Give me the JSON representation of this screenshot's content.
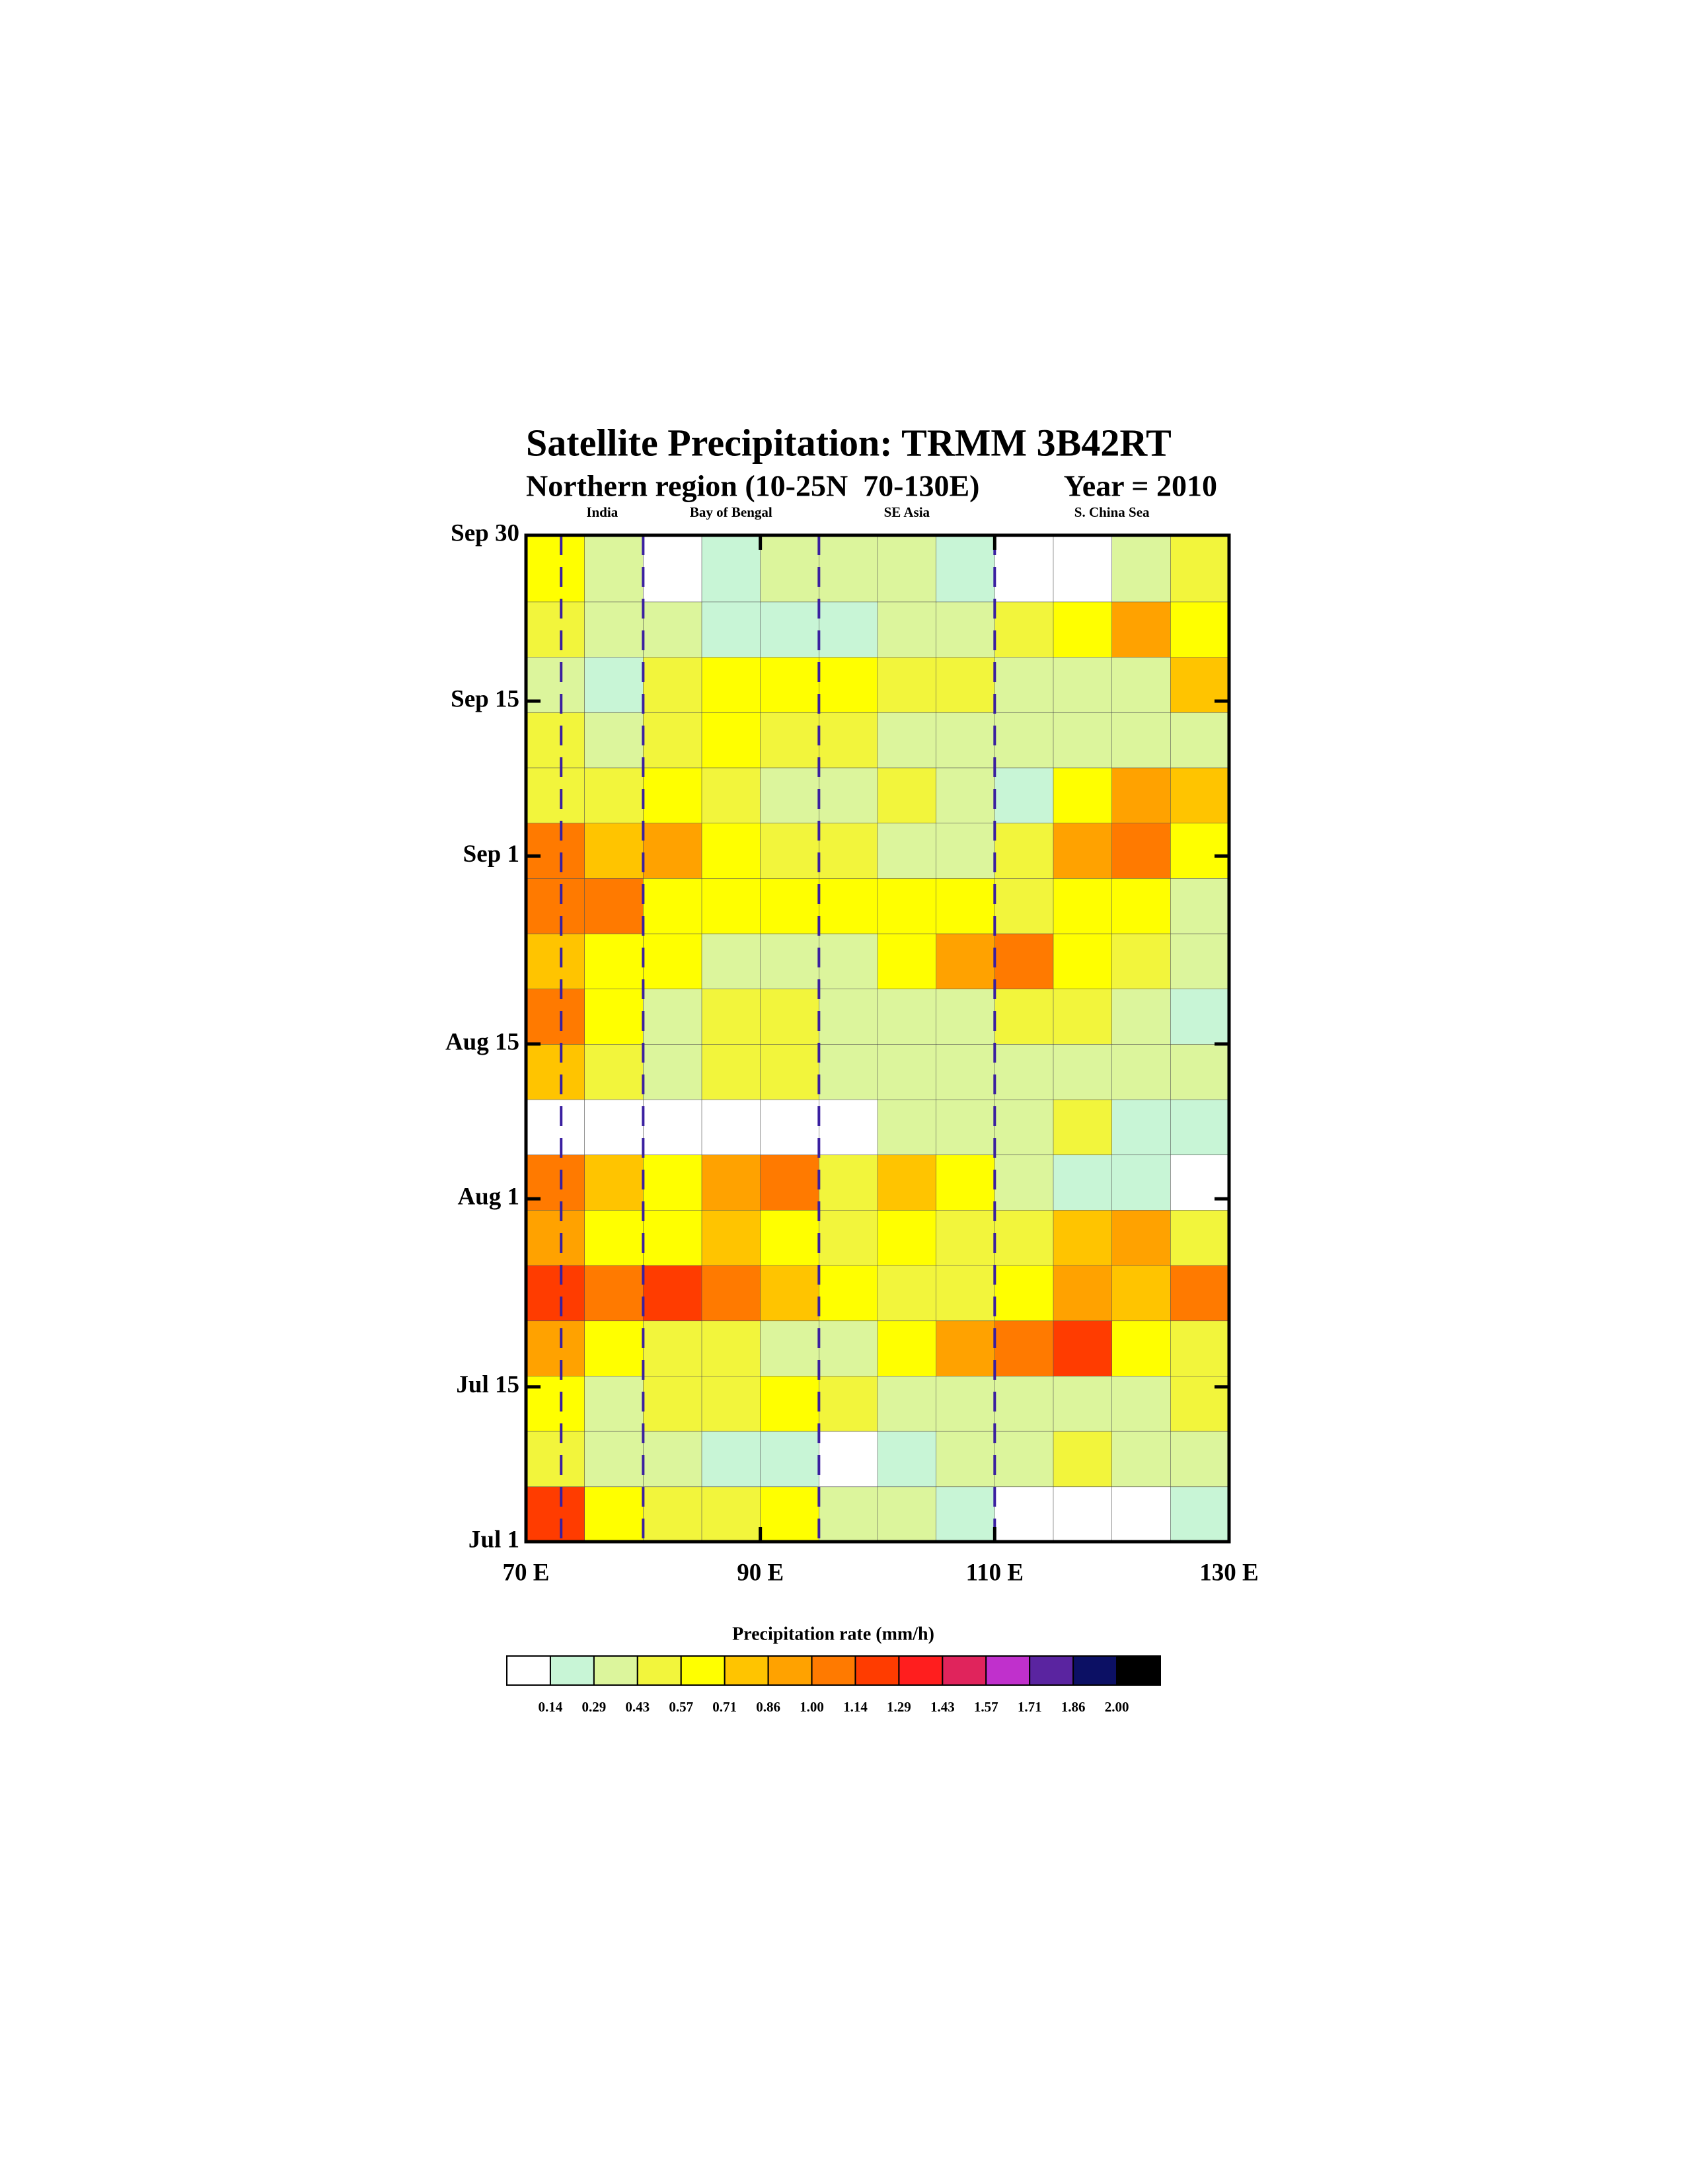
{
  "chart_data": {
    "type": "heatmap",
    "title": "Satellite Precipitation: TRMM 3B42RT",
    "subtitle": "Northern region (10-25N  70-130E)",
    "subtitle_right": "Year = 2010",
    "colorbar_label": "Precipitation rate (mm/h)",
    "xlim": [
      70,
      130
    ],
    "xticks": [
      {
        "value": 70,
        "label": "70 E"
      },
      {
        "value": 90,
        "label": "90 E"
      },
      {
        "value": 110,
        "label": "110 E"
      },
      {
        "value": 130,
        "label": "130 E"
      }
    ],
    "ylim": [
      0,
      91
    ],
    "yticks": [
      {
        "value": 0,
        "label": "Jul 1"
      },
      {
        "value": 14,
        "label": "Jul 15"
      },
      {
        "value": 31,
        "label": "Aug 1"
      },
      {
        "value": 45,
        "label": "Aug 15"
      },
      {
        "value": 62,
        "label": "Sep 1"
      },
      {
        "value": 76,
        "label": "Sep 15"
      },
      {
        "value": 91,
        "label": "Sep 30"
      }
    ],
    "region_lines": [
      73,
      80,
      95,
      110
    ],
    "regions": [
      "India",
      "Bay of Bengal",
      "SE Asia",
      "S. China Sea"
    ],
    "levels": [
      0.14,
      0.29,
      0.43,
      0.57,
      0.71,
      0.86,
      {
        "value": 1,
        "label": "1.00"
      },
      1.14,
      1.29,
      1.43,
      1.57,
      1.71,
      1.86,
      {
        "value": 2,
        "label": "2.00"
      }
    ],
    "colors": [
      "#ffffff",
      "#c8f5d6",
      "#dcf59c",
      "#f2f53c",
      "#ffff00",
      "#ffc400",
      "#ffa200",
      "#ff7a00",
      "#ff3c00",
      "#ff1e1e",
      "#e0245c",
      "#c030cc",
      "#5a24a0",
      "#0c1064",
      "#000000"
    ],
    "x": [
      72.5,
      77.5,
      82.5,
      87.5,
      92.5,
      97.5,
      102.5,
      107.5,
      112.5,
      117.5,
      122.5,
      127.5
    ],
    "y": [
      2.5,
      7.5,
      12.5,
      17.5,
      22.5,
      27.5,
      32.5,
      37.5,
      42.5,
      47.5,
      52.5,
      57.5,
      62.5,
      67.5,
      72.5,
      77.5,
      82.5,
      87.5
    ],
    "z": [
      [
        1.2,
        0.6,
        0.5,
        0.5,
        0.6,
        0.4,
        0.3,
        0.2,
        0.1,
        0.1,
        0.1,
        0.2
      ],
      [
        0.5,
        0.4,
        0.3,
        0.2,
        0.2,
        0.1,
        0.2,
        0.3,
        0.4,
        0.5,
        0.4,
        0.4
      ],
      [
        0.6,
        0.4,
        0.5,
        0.5,
        0.7,
        0.5,
        0.4,
        0.3,
        0.3,
        0.3,
        0.3,
        0.5
      ],
      [
        0.9,
        0.6,
        0.5,
        0.5,
        0.4,
        0.4,
        0.6,
        0.9,
        1.0,
        1.2,
        0.7,
        0.5
      ],
      [
        1.2,
        1.1,
        1.2,
        1.0,
        0.8,
        0.6,
        0.5,
        0.5,
        0.6,
        0.9,
        0.8,
        1.0
      ],
      [
        0.9,
        0.7,
        0.6,
        0.8,
        0.6,
        0.5,
        0.6,
        0.5,
        0.5,
        0.8,
        0.9,
        0.5
      ],
      [
        1.0,
        0.8,
        0.6,
        0.9,
        1.0,
        0.5,
        0.8,
        0.6,
        0.3,
        0.2,
        0.2,
        0.1
      ],
      [
        0.1,
        0.1,
        0.1,
        0.1,
        0.1,
        0.1,
        0.3,
        0.3,
        0.4,
        0.5,
        0.2,
        0.2
      ],
      [
        0.8,
        0.5,
        0.4,
        0.5,
        0.5,
        0.4,
        0.3,
        0.3,
        0.4,
        0.4,
        0.3,
        0.3
      ],
      [
        1.0,
        0.6,
        0.4,
        0.5,
        0.5,
        0.3,
        0.4,
        0.3,
        0.5,
        0.5,
        0.4,
        0.2
      ],
      [
        0.8,
        0.7,
        0.6,
        0.4,
        0.3,
        0.4,
        0.6,
        0.9,
        1.0,
        0.6,
        0.5,
        0.4
      ],
      [
        1.1,
        1.0,
        0.7,
        0.6,
        0.7,
        0.6,
        0.7,
        0.6,
        0.5,
        0.7,
        0.6,
        0.4
      ],
      [
        1.0,
        0.8,
        0.9,
        0.6,
        0.5,
        0.5,
        0.4,
        0.3,
        0.5,
        0.9,
        1.1,
        0.6
      ],
      [
        0.5,
        0.5,
        0.6,
        0.5,
        0.4,
        0.3,
        0.5,
        0.3,
        0.2,
        0.6,
        0.9,
        0.8
      ],
      [
        0.5,
        0.3,
        0.5,
        0.6,
        0.5,
        0.5,
        0.4,
        0.4,
        0.3,
        0.3,
        0.4,
        0.3
      ],
      [
        0.3,
        0.2,
        0.5,
        0.6,
        0.6,
        0.6,
        0.5,
        0.5,
        0.3,
        0.3,
        0.3,
        0.8
      ],
      [
        0.5,
        0.3,
        0.3,
        0.2,
        0.2,
        0.2,
        0.3,
        0.3,
        0.5,
        0.7,
        0.9,
        0.7
      ],
      [
        0.6,
        0.3,
        0.1,
        0.2,
        0.3,
        0.3,
        0.3,
        0.2,
        0.1,
        0.1,
        0.3,
        0.5
      ]
    ]
  }
}
